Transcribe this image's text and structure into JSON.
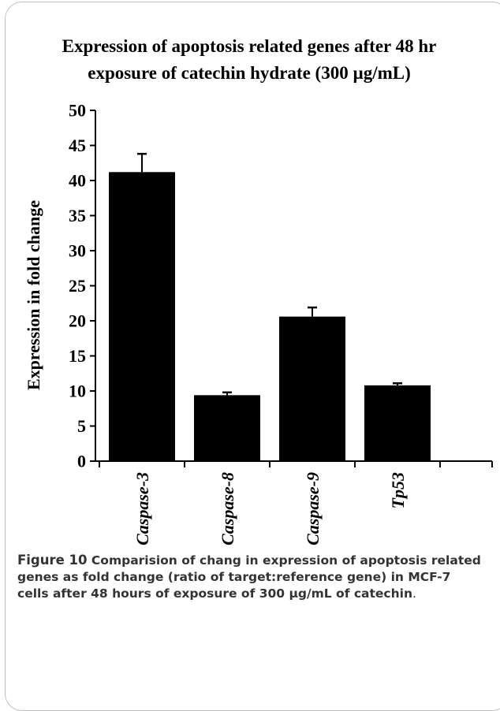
{
  "chart_data": {
    "type": "bar",
    "title_lines": [
      "Expression of apoptosis related genes after 48 hr",
      "exposure of catechin hydrate (300 µg/mL)"
    ],
    "ylabel": "Expression in fold change",
    "xlabel": "",
    "ylim": [
      0,
      50
    ],
    "yticks": [
      0,
      5,
      10,
      15,
      20,
      25,
      30,
      35,
      40,
      45,
      50
    ],
    "categories": [
      "Caspase-3",
      "Caspase-8",
      "Caspase-9",
      "Tp53"
    ],
    "values": [
      41.2,
      9.4,
      20.6,
      10.8
    ],
    "errors": [
      2.6,
      0.4,
      1.3,
      0.3
    ],
    "bar_color": "#000000",
    "grid": false,
    "legend": "none"
  },
  "caption": {
    "figure_label": "Figure 10",
    "text_bold": " Comparision of chang in expression of apoptosis related genes as fold change (ratio of target:reference gene) in MCF-7 cells after 48 hours of exposure of 300 µg/mL of catechin",
    "text_end": "."
  }
}
